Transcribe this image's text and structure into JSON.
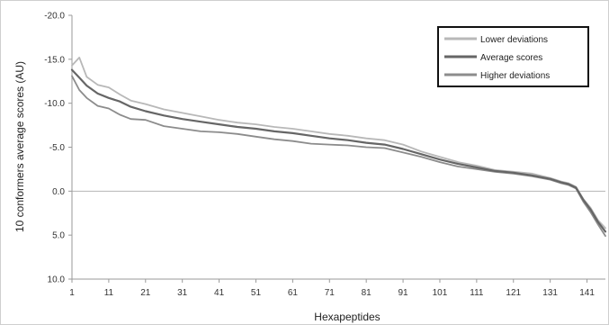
{
  "chart_data": {
    "type": "line",
    "xlabel": "Hexapeptides",
    "ylabel": "10 conformers average scores (AU)",
    "ylim": [
      -20.0,
      10.0
    ],
    "y_axis_inverted": true,
    "yticks": [
      "-20.0",
      "-15.0",
      "-10.0",
      "-5.0",
      "0.0",
      "5.0",
      "10.0"
    ],
    "ytick_values": [
      -20,
      -15,
      -10,
      -5,
      0,
      5,
      10
    ],
    "xticks": [
      "1",
      "11",
      "21",
      "31",
      "41",
      "51",
      "61",
      "71",
      "81",
      "91",
      "101",
      "111",
      "121",
      "131",
      "141"
    ],
    "xtick_values": [
      1,
      11,
      21,
      31,
      41,
      51,
      61,
      71,
      81,
      91,
      101,
      111,
      121,
      131,
      141
    ],
    "xlim": [
      1,
      146
    ],
    "grid": "horizontal line at 0.0",
    "legend_position": "top-right",
    "series": [
      {
        "name": "Lower deviations",
        "color": "#b8b8b8",
        "x": [
          1,
          3,
          5,
          8,
          11,
          14,
          17,
          21,
          26,
          31,
          36,
          41,
          46,
          51,
          56,
          61,
          66,
          71,
          76,
          81,
          86,
          91,
          96,
          101,
          106,
          111,
          116,
          121,
          126,
          131,
          134,
          136,
          138,
          140,
          142,
          144,
          146
        ],
        "values": [
          -14.3,
          -15.2,
          -13.0,
          -12.1,
          -11.8,
          -11.0,
          -10.3,
          -9.9,
          -9.3,
          -8.9,
          -8.5,
          -8.1,
          -7.8,
          -7.6,
          -7.3,
          -7.1,
          -6.8,
          -6.5,
          -6.3,
          -6.0,
          -5.8,
          -5.3,
          -4.5,
          -3.9,
          -3.3,
          -2.9,
          -2.4,
          -2.2,
          -2.0,
          -1.5,
          -1.1,
          -0.9,
          -0.5,
          0.9,
          1.9,
          3.3,
          4.2
        ]
      },
      {
        "name": "Average scores",
        "color": "#666666",
        "x": [
          1,
          3,
          5,
          8,
          11,
          14,
          17,
          21,
          26,
          31,
          36,
          41,
          46,
          51,
          56,
          61,
          66,
          71,
          76,
          81,
          86,
          91,
          96,
          101,
          106,
          111,
          116,
          121,
          126,
          131,
          134,
          136,
          138,
          140,
          142,
          144,
          146
        ],
        "values": [
          -13.8,
          -12.9,
          -12.0,
          -11.1,
          -10.6,
          -10.2,
          -9.6,
          -9.1,
          -8.6,
          -8.2,
          -7.9,
          -7.6,
          -7.3,
          -7.1,
          -6.8,
          -6.6,
          -6.3,
          -6.0,
          -5.8,
          -5.5,
          -5.3,
          -4.8,
          -4.2,
          -3.6,
          -3.1,
          -2.7,
          -2.3,
          -2.1,
          -1.8,
          -1.4,
          -1.0,
          -0.8,
          -0.4,
          1.0,
          2.1,
          3.5,
          4.6
        ]
      },
      {
        "name": "Higher deviations",
        "color": "#8c8c8c",
        "x": [
          1,
          3,
          5,
          8,
          11,
          14,
          17,
          21,
          26,
          31,
          36,
          41,
          46,
          51,
          56,
          61,
          66,
          71,
          76,
          81,
          86,
          91,
          96,
          101,
          106,
          111,
          116,
          121,
          126,
          131,
          134,
          136,
          138,
          140,
          142,
          144,
          146
        ],
        "values": [
          -13.1,
          -11.5,
          -10.6,
          -9.7,
          -9.4,
          -8.7,
          -8.2,
          -8.1,
          -7.4,
          -7.1,
          -6.8,
          -6.7,
          -6.5,
          -6.2,
          -5.9,
          -5.7,
          -5.4,
          -5.3,
          -5.2,
          -5.0,
          -4.9,
          -4.4,
          -3.9,
          -3.3,
          -2.8,
          -2.5,
          -2.2,
          -2.0,
          -1.7,
          -1.3,
          -0.9,
          -0.7,
          -0.3,
          1.2,
          2.4,
          3.8,
          5.1
        ]
      }
    ]
  }
}
